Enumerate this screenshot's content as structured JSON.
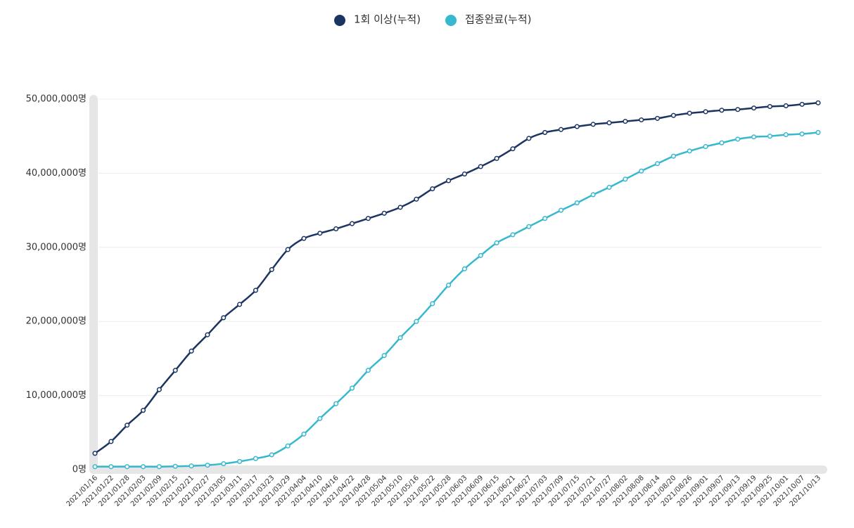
{
  "chart_data": {
    "type": "line",
    "categories": [
      "2021/01/16",
      "2021/01/22",
      "2021/01/28",
      "2021/02/03",
      "2021/02/09",
      "2021/02/15",
      "2021/02/21",
      "2021/02/27",
      "2021/03/05",
      "2021/03/11",
      "2021/03/17",
      "2021/03/23",
      "2021/03/29",
      "2021/04/04",
      "2021/04/10",
      "2021/04/16",
      "2021/04/22",
      "2021/04/28",
      "2021/05/04",
      "2021/05/10",
      "2021/05/16",
      "2021/05/22",
      "2021/05/28",
      "2021/06/03",
      "2021/06/09",
      "2021/06/15",
      "2021/06/21",
      "2021/06/27",
      "2021/07/03",
      "2021/07/09",
      "2021/07/15",
      "2021/07/21",
      "2021/07/27",
      "2021/08/02",
      "2021/08/08",
      "2021/08/14",
      "2021/08/20",
      "2021/08/26",
      "2021/09/01",
      "2021/09/07",
      "2021/09/13",
      "2021/09/19",
      "2021/09/25",
      "2021/10/01",
      "2021/10/07",
      "2021/10/13"
    ],
    "series": [
      {
        "name": "1회 이상(누적)",
        "color": "#1b3461",
        "values": [
          2200000,
          3800000,
          6000000,
          8000000,
          10800000,
          13400000,
          16000000,
          18200000,
          20500000,
          22300000,
          24200000,
          27000000,
          29700000,
          31200000,
          31900000,
          32500000,
          33200000,
          33900000,
          34600000,
          35400000,
          36500000,
          37900000,
          39000000,
          39900000,
          40900000,
          42000000,
          43300000,
          44700000,
          45500000,
          45900000,
          46300000,
          46600000,
          46800000,
          47000000,
          47200000,
          47400000,
          47800000,
          48100000,
          48300000,
          48500000,
          48600000,
          48800000,
          49000000,
          49100000,
          49300000,
          49500000
        ]
      },
      {
        "name": "접종완료(누적)",
        "color": "#36b8cf",
        "values": [
          400000,
          400000,
          400000,
          400000,
          400000,
          450000,
          500000,
          600000,
          800000,
          1100000,
          1500000,
          2000000,
          3200000,
          4800000,
          6900000,
          8900000,
          11000000,
          13400000,
          15400000,
          17800000,
          20000000,
          22400000,
          24900000,
          27100000,
          28900000,
          30600000,
          31700000,
          32800000,
          33900000,
          35000000,
          36000000,
          37100000,
          38100000,
          39200000,
          40300000,
          41300000,
          42300000,
          43000000,
          43600000,
          44100000,
          44600000,
          44900000,
          45000000,
          45200000,
          45300000,
          45500000
        ]
      }
    ],
    "ylim": [
      0,
      50000000
    ],
    "yticks": [
      {
        "value": 0,
        "label": "0명"
      },
      {
        "value": 10000000,
        "label": "10,000,000명"
      },
      {
        "value": 20000000,
        "label": "20,000,000명"
      },
      {
        "value": 30000000,
        "label": "30,000,000명"
      },
      {
        "value": 40000000,
        "label": "40,000,000명"
      },
      {
        "value": 50000000,
        "label": "50,000,000명"
      }
    ],
    "grid": true,
    "legend": "top"
  }
}
